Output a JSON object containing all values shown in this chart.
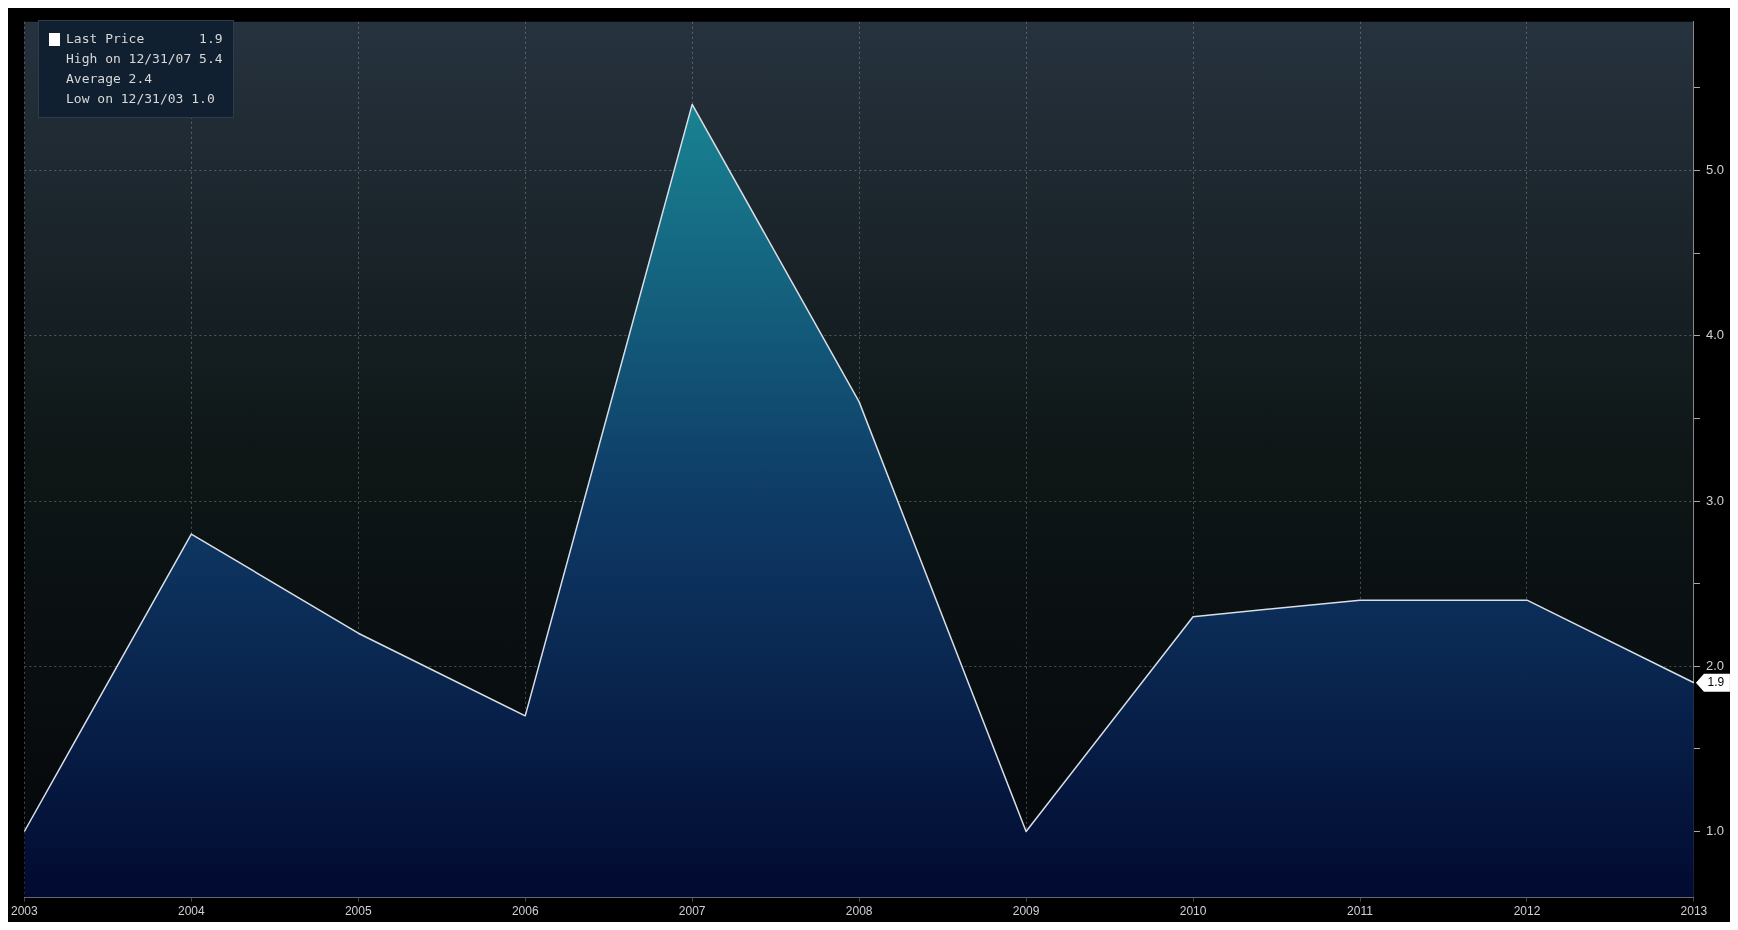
{
  "chart_data": {
    "type": "area",
    "categories": [
      "2003",
      "2004",
      "2005",
      "2006",
      "2007",
      "2008",
      "2009",
      "2010",
      "2011",
      "2012",
      "2013"
    ],
    "series": [
      {
        "name": "Last Price",
        "color": "#0e3a66",
        "values": [
          1.0,
          2.8,
          2.2,
          1.7,
          5.4,
          3.6,
          1.0,
          2.3,
          2.4,
          2.4,
          1.9
        ]
      }
    ],
    "ylim": [
      0.6,
      5.9
    ],
    "yticks": [
      {
        "value": 1,
        "label": "1.0"
      },
      {
        "value": 1.5,
        "label": null
      },
      {
        "value": 2,
        "label": "2.0"
      },
      {
        "value": 2.5,
        "label": null
      },
      {
        "value": 3,
        "label": "3.0"
      },
      {
        "value": 3.5,
        "label": null
      },
      {
        "value": 4,
        "label": "4.0"
      },
      {
        "value": 4.5,
        "label": null
      },
      {
        "value": 5,
        "label": "5.0"
      },
      {
        "value": 5.5,
        "label": null
      }
    ],
    "annotations": [
      {
        "text": "1.9",
        "x": "2013",
        "y": 1.9
      },
      "High on 12/31/07 5.4",
      "Average 2.4",
      "Low on 12/31/03 1.0"
    ],
    "grid": true,
    "legend": "top left",
    "line_style": "dotted"
  }
}
